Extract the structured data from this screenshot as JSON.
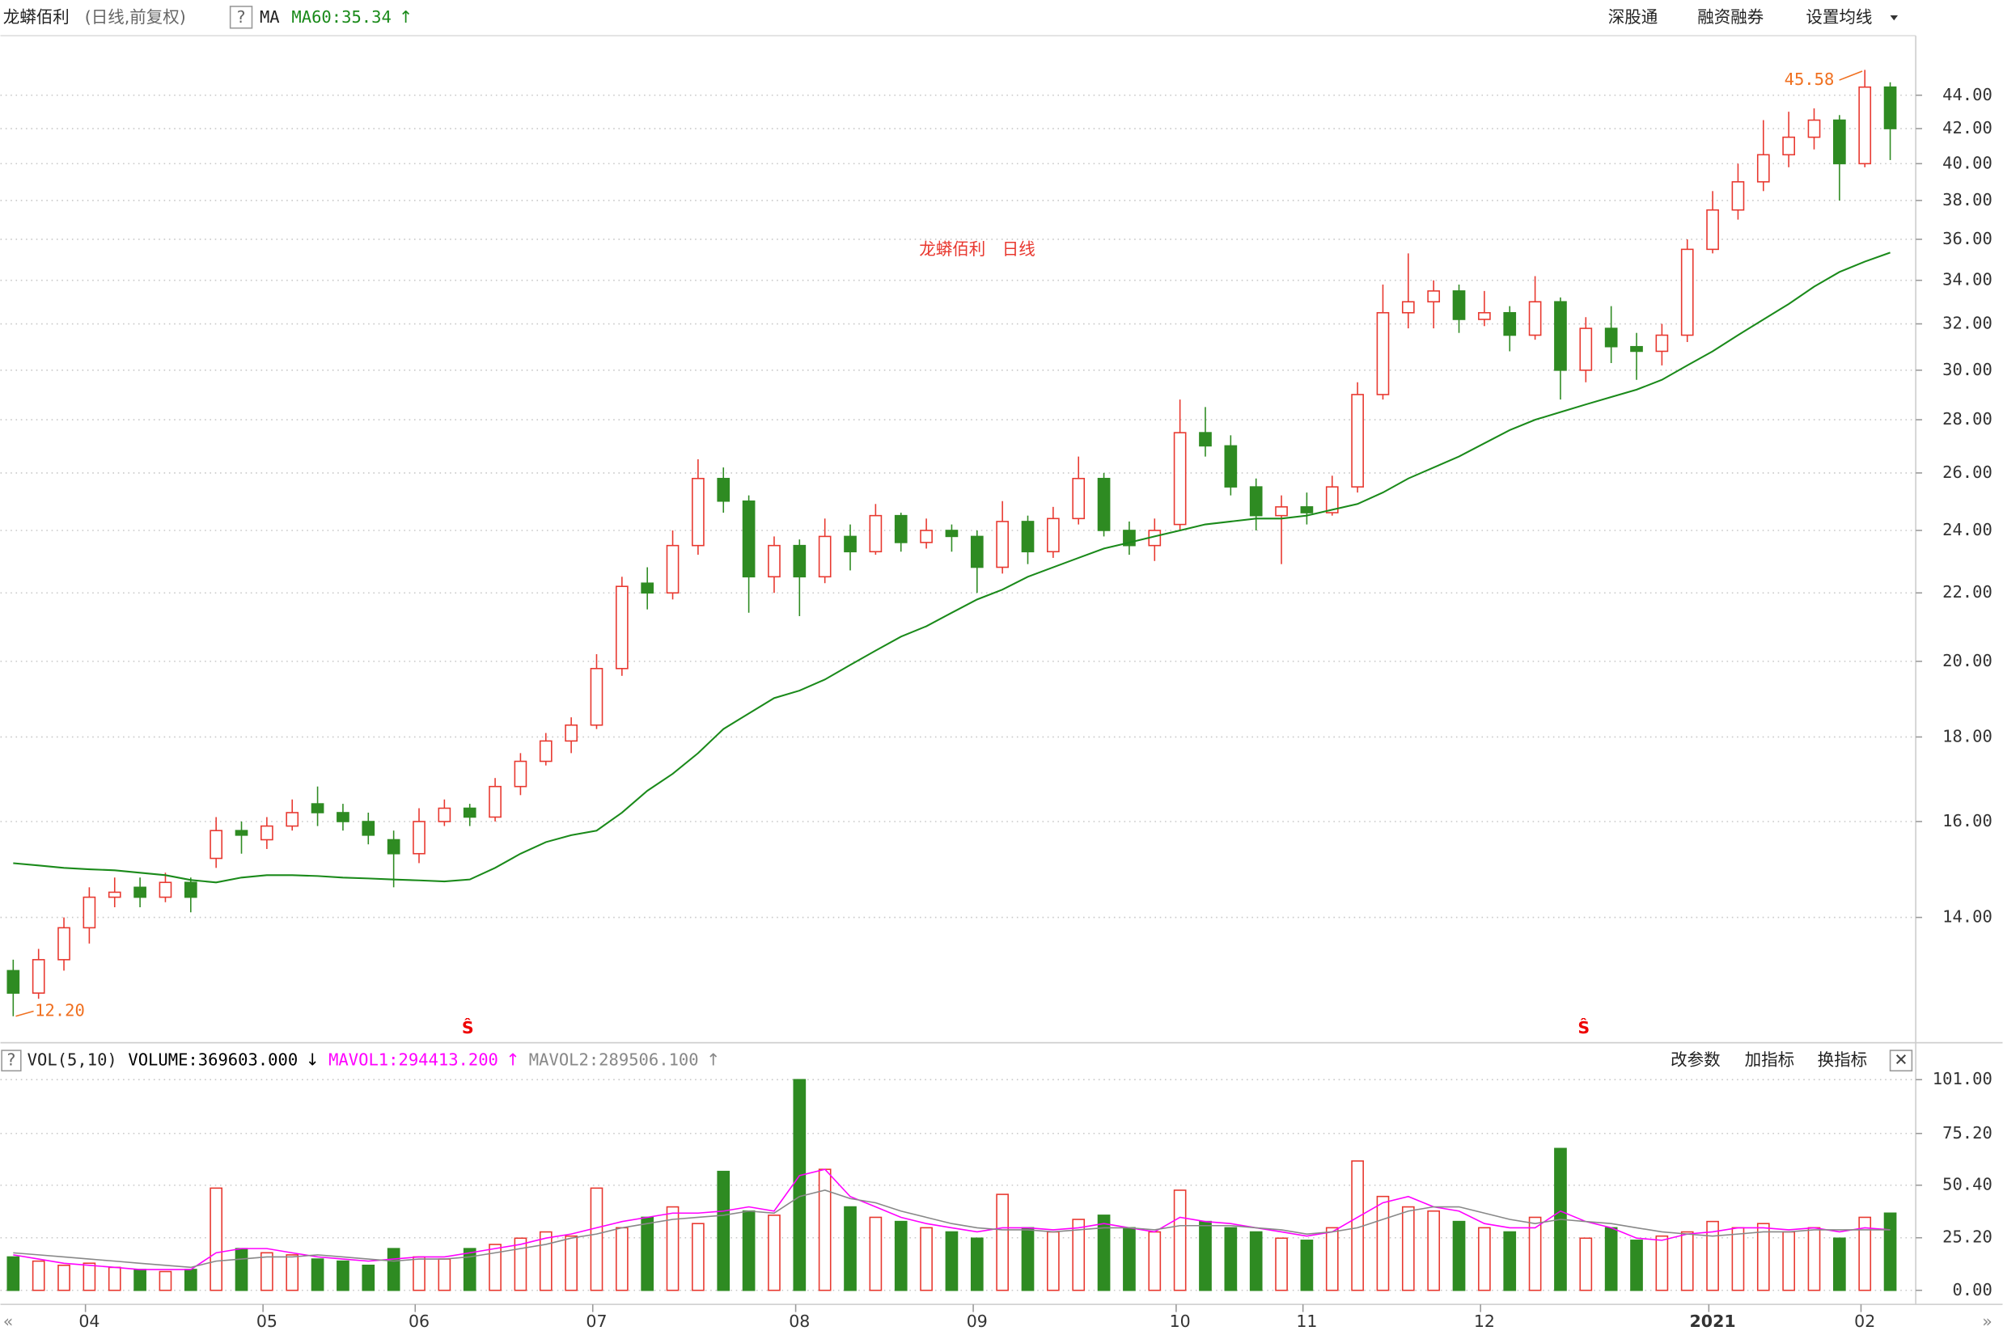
{
  "header": {
    "name": "龙蟒佰利",
    "mode": "(日线,前复权)",
    "help": "?",
    "ma_label": "MA",
    "ma60": "MA60:35.34",
    "ma60_arrow": "↑",
    "links": [
      "深股通",
      "融资融券",
      "设置均线"
    ],
    "markers": [
      "Ŝ",
      "Ŝ"
    ],
    "nav": [
      "«",
      "»"
    ]
  },
  "chart_data": [
    {
      "type": "candlestick",
      "title": "龙蟒佰利　日线",
      "log_scale": true,
      "grid": true,
      "up_color": "#e8382f",
      "down_color": "#2e8b22",
      "max_label": "45.58",
      "min_label": "12.20",
      "categories": [
        null,
        null,
        null,
        "04",
        null,
        null,
        null,
        null,
        null,
        null,
        "05",
        null,
        null,
        null,
        null,
        null,
        "06",
        null,
        null,
        null,
        null,
        null,
        null,
        "07",
        null,
        null,
        null,
        null,
        null,
        null,
        null,
        "08",
        null,
        null,
        null,
        null,
        null,
        null,
        "09",
        null,
        null,
        null,
        null,
        null,
        null,
        null,
        "10",
        null,
        null,
        null,
        null,
        "11",
        null,
        null,
        null,
        null,
        null,
        null,
        "12",
        null,
        null,
        null,
        null,
        null,
        null,
        null,
        null,
        "2021",
        null,
        null,
        null,
        null,
        null,
        "02",
        null
      ],
      "open": [
        13.0,
        12.6,
        13.2,
        13.8,
        14.4,
        14.6,
        14.4,
        14.7,
        15.2,
        15.8,
        15.6,
        15.9,
        16.4,
        16.2,
        16.0,
        15.6,
        15.3,
        16.0,
        16.3,
        16.1,
        16.8,
        17.4,
        17.9,
        18.3,
        19.8,
        22.3,
        22.0,
        23.5,
        25.8,
        25.0,
        22.5,
        23.5,
        22.5,
        23.8,
        23.3,
        24.5,
        23.6,
        24.0,
        23.8,
        22.8,
        24.3,
        23.3,
        24.4,
        25.8,
        24.0,
        23.5,
        24.2,
        27.5,
        27.0,
        25.5,
        24.5,
        24.8,
        24.6,
        25.5,
        29.0,
        32.5,
        33.0,
        33.5,
        32.2,
        32.5,
        31.5,
        33.0,
        30.0,
        31.8,
        31.0,
        30.8,
        31.5,
        35.5,
        37.5,
        39.0,
        40.5,
        41.5,
        42.5,
        40.0,
        44.5
      ],
      "high": [
        13.2,
        13.4,
        14.0,
        14.6,
        14.8,
        14.8,
        14.9,
        14.8,
        16.1,
        16.0,
        16.1,
        16.5,
        16.8,
        16.4,
        16.2,
        15.8,
        16.3,
        16.5,
        16.4,
        17.0,
        17.6,
        18.1,
        18.5,
        20.2,
        22.5,
        22.8,
        24.0,
        26.5,
        26.2,
        25.2,
        23.8,
        23.7,
        24.4,
        24.2,
        24.9,
        24.6,
        24.4,
        24.2,
        24.0,
        25.0,
        24.5,
        24.8,
        26.6,
        26.0,
        24.3,
        24.4,
        28.8,
        28.5,
        27.4,
        25.8,
        25.2,
        25.3,
        25.9,
        29.5,
        33.8,
        35.3,
        34.0,
        33.8,
        33.5,
        32.8,
        34.2,
        33.2,
        32.3,
        32.8,
        31.6,
        32.0,
        36.0,
        38.5,
        40.0,
        42.5,
        43.0,
        43.2,
        42.8,
        45.58,
        44.8
      ],
      "low": [
        12.2,
        12.5,
        13.0,
        13.5,
        14.2,
        14.2,
        14.3,
        14.1,
        15.0,
        15.3,
        15.4,
        15.8,
        15.9,
        15.8,
        15.5,
        14.6,
        15.1,
        15.9,
        15.9,
        16.0,
        16.6,
        17.3,
        17.6,
        18.2,
        19.6,
        21.5,
        21.8,
        23.2,
        24.6,
        21.4,
        22.0,
        21.3,
        22.3,
        22.7,
        23.2,
        23.3,
        23.4,
        23.3,
        22.0,
        22.6,
        22.9,
        23.1,
        24.2,
        23.8,
        23.2,
        23.0,
        24.0,
        26.6,
        25.2,
        24.0,
        22.9,
        24.2,
        24.5,
        25.3,
        28.8,
        31.8,
        31.8,
        31.6,
        31.9,
        30.8,
        31.3,
        28.8,
        29.5,
        30.3,
        29.6,
        30.2,
        31.2,
        35.3,
        37.0,
        38.5,
        39.8,
        40.8,
        38.0,
        39.8,
        40.2
      ],
      "close": [
        12.6,
        13.2,
        13.8,
        14.4,
        14.5,
        14.4,
        14.7,
        14.4,
        15.8,
        15.7,
        15.9,
        16.2,
        16.2,
        16.0,
        15.7,
        15.3,
        16.0,
        16.3,
        16.1,
        16.8,
        17.4,
        17.9,
        18.3,
        19.8,
        22.2,
        22.0,
        23.5,
        25.8,
        25.0,
        22.5,
        23.5,
        22.5,
        23.8,
        23.3,
        24.5,
        23.6,
        24.0,
        23.8,
        22.8,
        24.3,
        23.3,
        24.4,
        25.8,
        24.0,
        23.5,
        24.0,
        27.5,
        27.0,
        25.5,
        24.5,
        24.8,
        24.6,
        25.5,
        29.0,
        32.5,
        33.0,
        33.5,
        32.2,
        32.5,
        31.5,
        33.0,
        30.0,
        31.8,
        31.0,
        30.8,
        31.5,
        35.5,
        37.5,
        39.0,
        40.5,
        41.5,
        42.5,
        40.0,
        44.5,
        42.0
      ],
      "series": [
        {
          "name": "MA60",
          "color": "#1a8a1a",
          "values": [
            15.1,
            15.05,
            15.0,
            14.97,
            14.95,
            14.9,
            14.85,
            14.75,
            14.7,
            14.8,
            14.85,
            14.85,
            14.83,
            14.8,
            14.78,
            14.76,
            14.74,
            14.72,
            14.76,
            15.0,
            15.3,
            15.55,
            15.7,
            15.8,
            16.2,
            16.7,
            17.1,
            17.6,
            18.2,
            18.6,
            19.0,
            19.2,
            19.5,
            19.9,
            20.3,
            20.7,
            21.0,
            21.4,
            21.8,
            22.1,
            22.5,
            22.8,
            23.1,
            23.4,
            23.6,
            23.8,
            24.0,
            24.2,
            24.3,
            24.4,
            24.4,
            24.5,
            24.7,
            24.9,
            25.3,
            25.8,
            26.2,
            26.6,
            27.1,
            27.6,
            28.0,
            28.3,
            28.6,
            28.9,
            29.2,
            29.6,
            30.2,
            30.8,
            31.5,
            32.2,
            32.9,
            33.7,
            34.4,
            34.9,
            35.34
          ]
        }
      ],
      "ylim": [
        11.8,
        47.8
      ],
      "yticks": [
        {
          "value": 14,
          "label": "14.00"
        },
        {
          "value": 16,
          "label": "16.00"
        },
        {
          "value": 18,
          "label": "18.00"
        },
        {
          "value": 20,
          "label": "20.00"
        },
        {
          "value": 22,
          "label": "22.00"
        },
        {
          "value": 24,
          "label": "24.00"
        },
        {
          "value": 26,
          "label": "26.00"
        },
        {
          "value": 28,
          "label": "28.00"
        },
        {
          "value": 30,
          "label": "30.00"
        },
        {
          "value": 32,
          "label": "32.00"
        },
        {
          "value": 34,
          "label": "34.00"
        },
        {
          "value": 36,
          "label": "36.00"
        },
        {
          "value": 38,
          "label": "38.00"
        },
        {
          "value": 40,
          "label": "40.00"
        },
        {
          "value": 42,
          "label": "42.00"
        },
        {
          "value": 44,
          "label": "44.00"
        }
      ]
    },
    {
      "type": "bar",
      "indicator": "VOL(5,10)",
      "help": "?",
      "buttons": [
        "改参数",
        "加指标",
        "换指标"
      ],
      "close_button": "✕",
      "grid": true,
      "readouts": [
        {
          "text": "VOLUME:369603.000",
          "arrow": "↓",
          "color": "#000000"
        },
        {
          "text": "MAVOL1:294413.200",
          "arrow": "↑",
          "color": "#ff00ff"
        },
        {
          "text": "MAVOL2:289506.100",
          "arrow": "↑",
          "color": "#888888"
        }
      ],
      "values": [
        16,
        14,
        12,
        13,
        11,
        10,
        9,
        10,
        49,
        20,
        18,
        17,
        15,
        14,
        12,
        20,
        16,
        15,
        20,
        22,
        25,
        28,
        26,
        49,
        30,
        35,
        40,
        32,
        57,
        38,
        36,
        101,
        58,
        40,
        35,
        33,
        30,
        28,
        25,
        46,
        30,
        28,
        34,
        36,
        30,
        28,
        48,
        33,
        30,
        28,
        25,
        24,
        30,
        62,
        45,
        40,
        38,
        33,
        30,
        28,
        35,
        68,
        25,
        30,
        24,
        26,
        28,
        33,
        30,
        32,
        28,
        30,
        25,
        35,
        37
      ],
      "series": [
        {
          "name": "MAVOL1",
          "color": "#ff00ff",
          "values": [
            17,
            15,
            13,
            12,
            11,
            10,
            10,
            10,
            18,
            20,
            20,
            18,
            16,
            15,
            14,
            15,
            16,
            16,
            18,
            20,
            22,
            25,
            27,
            30,
            33,
            35,
            37,
            37,
            38,
            40,
            38,
            55,
            58,
            45,
            40,
            35,
            32,
            30,
            28,
            30,
            30,
            29,
            30,
            32,
            30,
            28,
            35,
            33,
            32,
            30,
            28,
            26,
            28,
            35,
            42,
            45,
            40,
            38,
            32,
            30,
            30,
            38,
            33,
            30,
            25,
            24,
            27,
            28,
            30,
            30,
            29,
            30,
            28,
            30,
            29
          ]
        },
        {
          "name": "MAVOL2",
          "color": "#888888",
          "values": [
            18,
            17,
            16,
            15,
            14,
            13,
            12,
            11,
            14,
            15,
            16,
            16,
            17,
            16,
            15,
            14,
            15,
            15,
            16,
            18,
            20,
            22,
            25,
            27,
            30,
            32,
            34,
            35,
            36,
            38,
            37,
            45,
            48,
            44,
            42,
            38,
            35,
            32,
            30,
            29,
            29,
            28,
            29,
            30,
            30,
            29,
            31,
            31,
            31,
            30,
            29,
            27,
            28,
            30,
            34,
            38,
            40,
            40,
            37,
            34,
            32,
            34,
            33,
            32,
            30,
            28,
            27,
            26,
            27,
            28,
            28,
            29,
            29,
            29,
            29
          ]
        }
      ],
      "ylim": [
        0,
        103.4
      ],
      "yticks": [
        {
          "value": 0,
          "label": "0.00"
        },
        {
          "value": 25.2,
          "label": "25.20"
        },
        {
          "value": 50.4,
          "label": "50.40"
        },
        {
          "value": 75.2,
          "label": "75.20"
        },
        {
          "value": 101,
          "label": "101.00"
        }
      ]
    }
  ]
}
